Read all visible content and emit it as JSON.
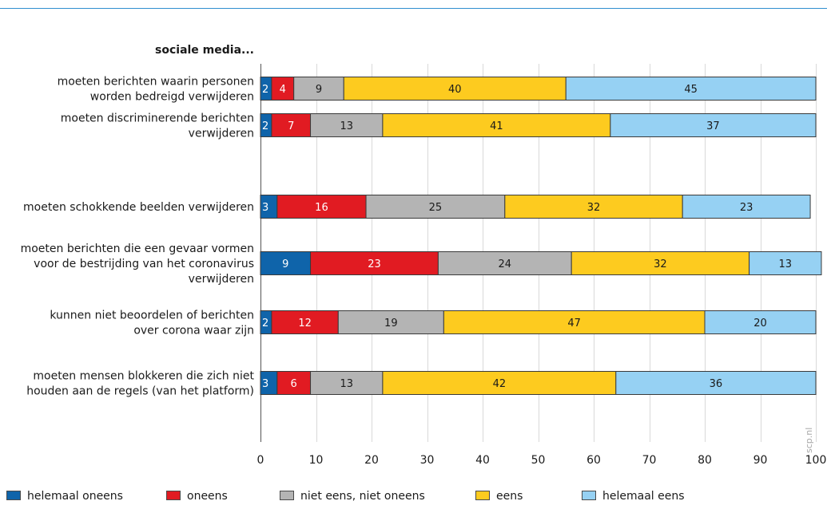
{
  "chart_data": {
    "type": "bar",
    "orientation": "horizontal",
    "stacked": true,
    "title": "sociale media...",
    "categories": [
      [
        "moeten berichten waarin personen",
        "worden bedreigd verwijderen"
      ],
      [
        "moeten discriminerende berichten",
        "verwijderen"
      ],
      [
        "moeten schokkende beelden verwijderen"
      ],
      [
        "moeten berichten die een gevaar vormen",
        "voor de bestrijding van het coronavirus",
        "verwijderen"
      ],
      [
        "kunnen niet beoordelen of berichten",
        "over corona waar zijn"
      ],
      [
        "moeten mensen blokkeren die zich niet",
        "houden aan de regels (van het platform)"
      ]
    ],
    "series": [
      {
        "name": "helemaal oneens",
        "color": "#0f64aa",
        "label_color": "#ffffff",
        "values": [
          2,
          2,
          3,
          9,
          2,
          3
        ]
      },
      {
        "name": "oneens",
        "color": "#e11b22",
        "label_color": "#ffffff",
        "values": [
          4,
          7,
          16,
          23,
          12,
          6
        ]
      },
      {
        "name": "niet eens, niet oneens",
        "color": "#b4b4b4",
        "label_color": "#1a1a1a",
        "values": [
          9,
          13,
          25,
          24,
          19,
          13
        ]
      },
      {
        "name": "eens",
        "color": "#fdcb1f",
        "label_color": "#1a1a1a",
        "values": [
          40,
          41,
          32,
          32,
          47,
          42
        ]
      },
      {
        "name": "helemaal eens",
        "color": "#96d1f3",
        "label_color": "#1a1a1a",
        "values": [
          45,
          37,
          23,
          13,
          20,
          36
        ]
      }
    ],
    "xlim": [
      0,
      100
    ],
    "xticks": [
      0,
      10,
      20,
      30,
      40,
      50,
      60,
      70,
      80,
      90,
      100
    ],
    "grid": true,
    "legend_position": "bottom",
    "credit": "scp.nl"
  }
}
